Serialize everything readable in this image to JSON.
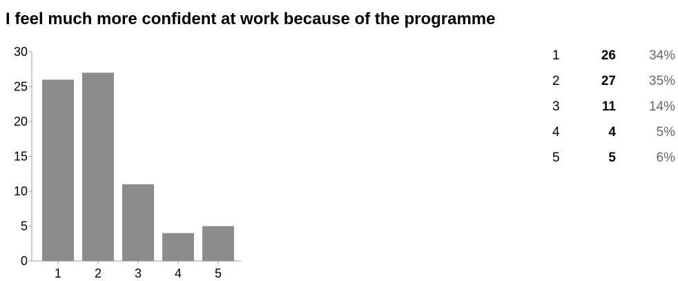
{
  "chart_data": {
    "type": "bar",
    "title": "I feel much more confident at work because of the programme",
    "categories": [
      "1",
      "2",
      "3",
      "4",
      "5"
    ],
    "values": [
      26,
      27,
      11,
      4,
      5
    ],
    "ylim": [
      0,
      30
    ],
    "yticks": [
      0,
      5,
      10,
      15,
      20,
      25,
      30
    ],
    "xlabel": "",
    "ylabel": "",
    "grid": false,
    "legend": "none",
    "bar_color": "#8c8c8c",
    "summary": [
      {
        "category": "1",
        "count": "26",
        "percent": "34%"
      },
      {
        "category": "2",
        "count": "27",
        "percent": "35%"
      },
      {
        "category": "3",
        "count": "11",
        "percent": "14%"
      },
      {
        "category": "4",
        "count": "4",
        "percent": "5%"
      },
      {
        "category": "5",
        "count": "5",
        "percent": "6%"
      }
    ]
  }
}
